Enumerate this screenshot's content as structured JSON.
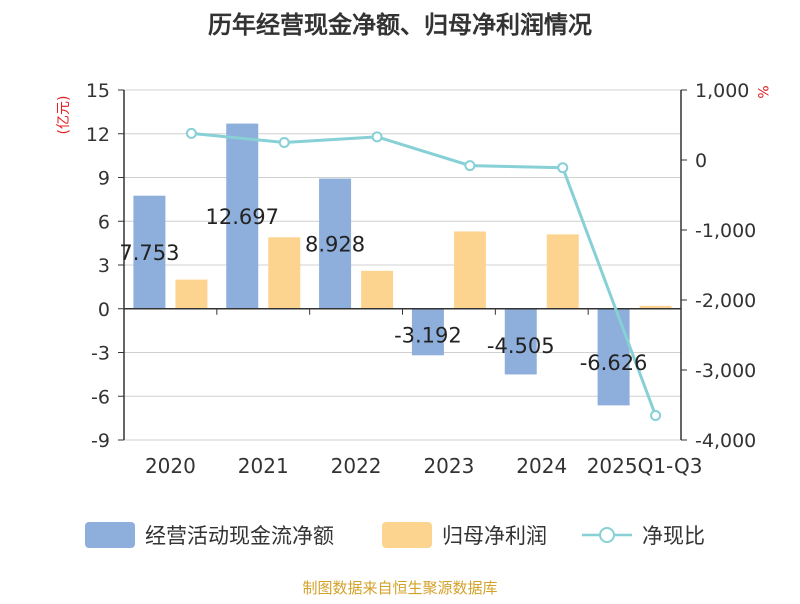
{
  "chart_data": {
    "type": "bar",
    "title": "历年经营现金净额、归母净利润情况",
    "categories": [
      "2020",
      "2021",
      "2022",
      "2023",
      "2024",
      "2025Q1-Q3"
    ],
    "series": [
      {
        "name": "经营活动现金流净额",
        "type": "bar",
        "axis": "left",
        "color": "#8eaedb",
        "values": [
          7.753,
          12.697,
          8.928,
          -3.192,
          -4.505,
          -6.626
        ],
        "data_labels": [
          "7.753",
          "12.697",
          "8.928",
          "-3.192",
          "-4.505",
          "-6.626"
        ]
      },
      {
        "name": "归母净利润",
        "type": "bar",
        "axis": "left",
        "color": "#fdd48f",
        "values": [
          2.0,
          4.9,
          2.6,
          5.3,
          5.1,
          0.2
        ]
      },
      {
        "name": "净现比",
        "type": "line",
        "axis": "right",
        "color": "#86d0d6",
        "values": [
          380,
          250,
          330,
          -80,
          -110,
          -3650
        ]
      }
    ],
    "y_left": {
      "label": "(亿元)",
      "min": -9,
      "max": 15,
      "ticks": [
        15,
        12,
        9,
        6,
        3,
        0,
        -3,
        -6,
        -9
      ]
    },
    "y_right": {
      "label": "%",
      "min": -4000,
      "max": 1000,
      "ticks": [
        1000,
        0,
        -1000,
        -2000,
        -3000,
        -4000
      ],
      "tick_labels": [
        "1,000",
        "0",
        "-1,000",
        "-2,000",
        "-3,000",
        "-4,000"
      ]
    },
    "grid": true,
    "legend_position": "bottom",
    "source": "制图数据来自恒生聚源数据库"
  }
}
